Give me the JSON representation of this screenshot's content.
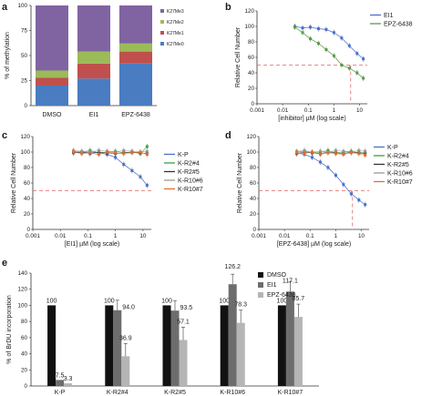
{
  "chart_data": [
    {
      "panel": "a",
      "type": "bar",
      "subtype": "stacked-percent",
      "categories": [
        "DMSO",
        "EI1",
        "EPZ-6438"
      ],
      "ylabel": "% of methylation",
      "ylim": [
        0,
        100
      ],
      "yticks": [
        0,
        25,
        50,
        75,
        100
      ],
      "legend_position": "right",
      "series": [
        {
          "name": "K27Me0",
          "color": "#4a7cc1",
          "values": [
            20,
            27,
            42
          ]
        },
        {
          "name": "K27Me1",
          "color": "#c0504d",
          "values": [
            8,
            15,
            12
          ]
        },
        {
          "name": "K27Me2",
          "color": "#9bbb59",
          "values": [
            7,
            12,
            8
          ]
        },
        {
          "name": "K27Me3",
          "color": "#8064a2",
          "values": [
            65,
            46,
            38
          ]
        }
      ]
    },
    {
      "panel": "b",
      "type": "scatter",
      "xscale": "log",
      "xlabel": "[inhibitor] µM (log scale)",
      "ylabel": "Relative Cell Number",
      "xlim": [
        0.001,
        20
      ],
      "ylim": [
        0,
        120
      ],
      "xticks": [
        "0.001",
        "0.01",
        "0.1",
        "1",
        "10"
      ],
      "yticks": [
        0,
        20,
        40,
        60,
        80,
        100,
        120
      ],
      "reference": {
        "y": 50,
        "x": 4.5,
        "color": "#e06666"
      },
      "legend_position": "right",
      "series": [
        {
          "name": "EI1",
          "color": "#4a6fc9",
          "x": [
            0.03,
            0.06,
            0.12,
            0.25,
            0.5,
            1,
            2,
            4,
            8,
            14
          ],
          "y": [
            100,
            98,
            99,
            97,
            96,
            92,
            85,
            75,
            65,
            58
          ]
        },
        {
          "name": "EPZ-6438",
          "color": "#5a9a4a",
          "x": [
            0.03,
            0.06,
            0.12,
            0.25,
            0.5,
            1,
            2,
            4,
            8,
            14
          ],
          "y": [
            99,
            92,
            84,
            78,
            70,
            62,
            50,
            46,
            40,
            33
          ]
        }
      ]
    },
    {
      "panel": "c",
      "type": "scatter",
      "xscale": "log",
      "xlabel": "[EI1] µM (log scale)",
      "ylabel": "Relative Cell Number",
      "xlim": [
        0.001,
        20
      ],
      "ylim": [
        0,
        120
      ],
      "xticks": [
        "0.001",
        "0.01",
        "0.1",
        "1",
        "10"
      ],
      "yticks": [
        0,
        20,
        40,
        60,
        80,
        100,
        120
      ],
      "reference": {
        "y": 50
      },
      "legend_position": "right",
      "series": [
        {
          "name": "K-P",
          "color": "#4a6fc9",
          "x": [
            0.03,
            0.06,
            0.12,
            0.25,
            0.5,
            1,
            2,
            4,
            8,
            14
          ],
          "y": [
            100,
            99,
            100,
            99,
            97,
            93,
            84,
            76,
            68,
            57
          ]
        },
        {
          "name": "K-R2#4",
          "color": "#3aa23a",
          "x": [
            0.03,
            0.06,
            0.12,
            0.25,
            0.5,
            1,
            2,
            4,
            8,
            14
          ],
          "y": [
            101,
            100,
            102,
            99,
            100,
            101,
            99,
            100,
            98,
            107
          ]
        },
        {
          "name": "K-R2#5",
          "color": "#333333",
          "x": [
            0.03,
            0.06,
            0.12,
            0.25,
            0.5,
            1,
            2,
            4,
            8,
            14
          ],
          "y": [
            99,
            100,
            98,
            100,
            99,
            98,
            99,
            100,
            99,
            98
          ]
        },
        {
          "name": "K-R10#6",
          "color": "#999999",
          "x": [
            0.03,
            0.06,
            0.12,
            0.25,
            0.5,
            1,
            2,
            4,
            8,
            14
          ],
          "y": [
            102,
            101,
            100,
            102,
            101,
            100,
            102,
            101,
            100,
            101
          ]
        },
        {
          "name": "K-R10#7",
          "color": "#e07030",
          "x": [
            0.03,
            0.06,
            0.12,
            0.25,
            0.5,
            1,
            2,
            4,
            8,
            14
          ],
          "y": [
            100,
            98,
            99,
            97,
            100,
            99,
            98,
            99,
            100,
            97
          ]
        }
      ]
    },
    {
      "panel": "d",
      "type": "scatter",
      "xscale": "log",
      "xlabel": "[EPZ-6438] µM (log scale)",
      "ylabel": "Relative Cell Number",
      "xlim": [
        0.001,
        20
      ],
      "ylim": [
        0,
        120
      ],
      "xticks": [
        "0.001",
        "0.01",
        "0.1",
        "1",
        "10"
      ],
      "yticks": [
        0,
        20,
        40,
        60,
        80,
        100,
        120
      ],
      "reference": {
        "y": 50,
        "x": 4.5,
        "color": "#e06666"
      },
      "legend_position": "right",
      "series": [
        {
          "name": "K-P",
          "color": "#4a6fc9",
          "x": [
            0.03,
            0.06,
            0.12,
            0.25,
            0.5,
            1,
            2,
            4,
            8,
            14
          ],
          "y": [
            99,
            97,
            93,
            87,
            80,
            70,
            58,
            46,
            38,
            32
          ]
        },
        {
          "name": "K-R2#4",
          "color": "#3aa23a",
          "x": [
            0.03,
            0.06,
            0.12,
            0.25,
            0.5,
            1,
            2,
            4,
            8,
            14
          ],
          "y": [
            100,
            101,
            99,
            100,
            102,
            99,
            100,
            101,
            99,
            100
          ]
        },
        {
          "name": "K-R2#5",
          "color": "#333333",
          "x": [
            0.03,
            0.06,
            0.12,
            0.25,
            0.5,
            1,
            2,
            4,
            8,
            14
          ],
          "y": [
            98,
            100,
            99,
            98,
            100,
            99,
            98,
            100,
            99,
            98
          ]
        },
        {
          "name": "K-R10#6",
          "color": "#999999",
          "x": [
            0.03,
            0.06,
            0.12,
            0.25,
            0.5,
            1,
            2,
            4,
            8,
            14
          ],
          "y": [
            101,
            102,
            100,
            101,
            100,
            102,
            101,
            100,
            102,
            101
          ]
        },
        {
          "name": "K-R10#7",
          "color": "#e07030",
          "x": [
            0.03,
            0.06,
            0.12,
            0.25,
            0.5,
            1,
            2,
            4,
            8,
            14
          ],
          "y": [
            99,
            98,
            100,
            97,
            99,
            98,
            97,
            99,
            98,
            96
          ]
        }
      ]
    },
    {
      "panel": "e",
      "type": "bar",
      "categories": [
        "K-P",
        "K-R2#4",
        "K-R2#5",
        "K-R10#6",
        "K-R10#7"
      ],
      "ylabel": "% of BrDU incorporation",
      "ylim": [
        0,
        140
      ],
      "yticks": [
        0,
        20,
        40,
        60,
        80,
        100,
        120,
        140
      ],
      "legend_position": "top-right",
      "series": [
        {
          "name": "DMSO",
          "color": "#111111",
          "values": [
            100,
            100,
            100,
            100,
            100
          ],
          "labels": [
            "100",
            "100",
            "100",
            "100",
            "100"
          ]
        },
        {
          "name": "EI1",
          "color": "#6d6d6d",
          "values": [
            7.5,
            94.0,
            93.5,
            126.2,
            117.1
          ],
          "labels": [
            "7.5",
            "94.0",
            "93.5",
            "126.2",
            "117.1"
          ]
        },
        {
          "name": "EPZ-6438",
          "color": "#b5b5b5",
          "values": [
            3.3,
            36.9,
            57.1,
            78.3,
            85.7
          ],
          "labels": [
            "3.3",
            "36.9",
            "57.1",
            "78.3",
            "85.7"
          ]
        }
      ]
    }
  ],
  "panel_letters": [
    "a",
    "b",
    "c",
    "d",
    "e"
  ]
}
